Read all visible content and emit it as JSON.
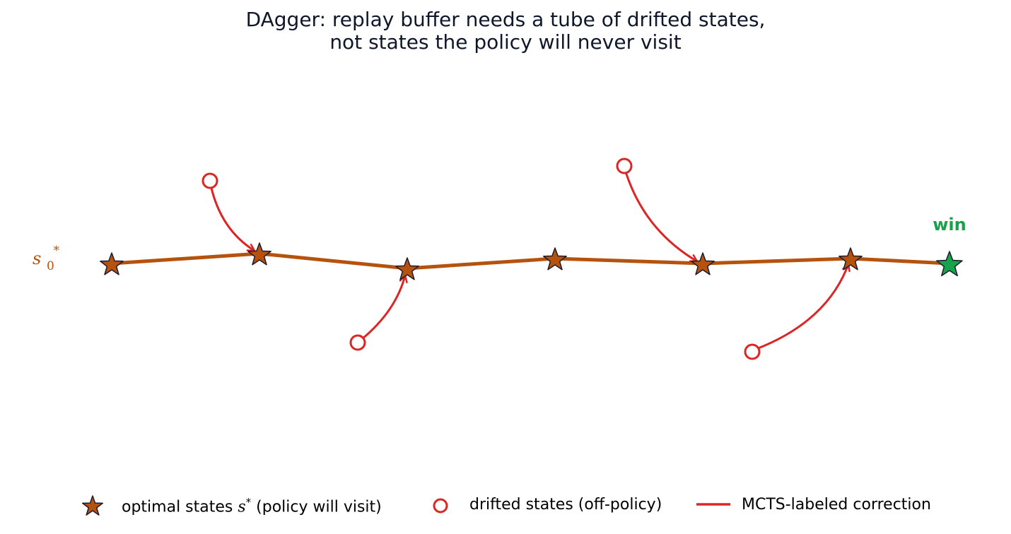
{
  "title": {
    "line1": "DAgger: replay buffer needs a tube of drifted states,",
    "line2": "not states the policy will never visit"
  },
  "start_label": {
    "base": "s",
    "sub": "0",
    "sup": "*"
  },
  "goal_label": "win",
  "colors": {
    "trajectory": "#b5530e",
    "star_fill": "#b5530e",
    "goal_fill": "#16a34a",
    "goal_text": "#16a34a",
    "drift": "#dc2626",
    "outline": "#1e1b2e",
    "title": "#0f172a"
  },
  "icons": {
    "optimal": "star-icon",
    "drifted": "circle-icon",
    "correction": "line-icon"
  },
  "legend": {
    "optimal_label_prefix": "optimal states ",
    "optimal_label_symbol": "s",
    "optimal_label_sup": "*",
    "optimal_label_suffix": " (policy will visit)",
    "drifted_label": "drifted states (off-policy)",
    "correction_label": "MCTS-labeled correction"
  }
}
